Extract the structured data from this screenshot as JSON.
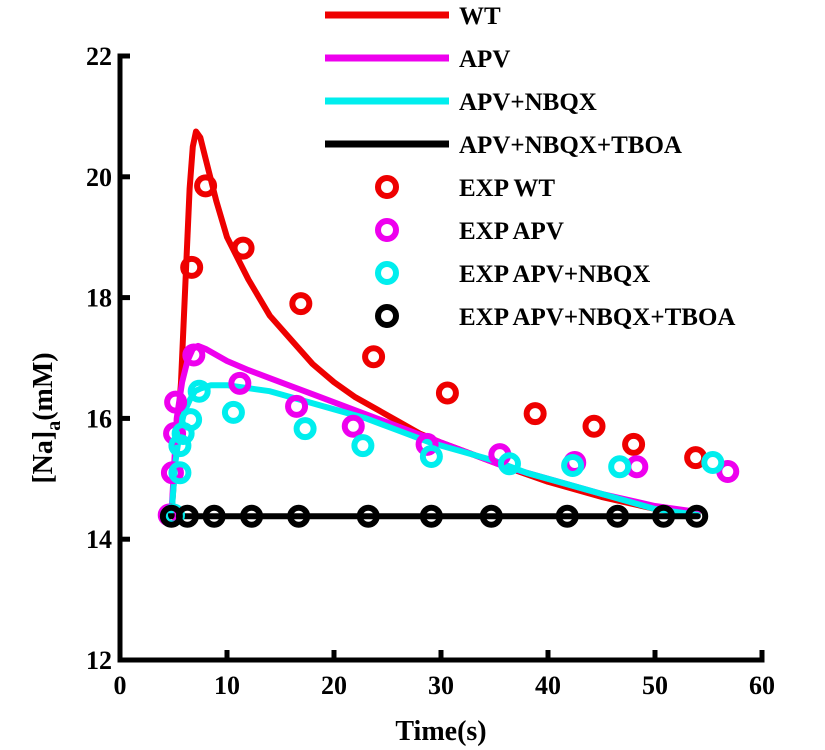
{
  "chart_data": {
    "type": "line",
    "xlabel": "Time(s)",
    "ylabel_main": "[Na]",
    "ylabel_sub": "a",
    "ylabel_unit": "(mM)",
    "xlim": [
      0,
      60
    ],
    "ylim": [
      12,
      22
    ],
    "xticks": [
      0,
      10,
      20,
      30,
      40,
      50,
      60
    ],
    "yticks": [
      12,
      14,
      16,
      18,
      20,
      22
    ],
    "grid": false,
    "legend_position": "top-right",
    "series": [
      {
        "name": "WT",
        "kind": "line",
        "color": "#ee0000",
        "x": [
          4.8,
          5.3,
          5.7,
          6.1,
          6.5,
          6.8,
          7.1,
          7.5,
          8,
          9,
          10,
          12,
          14,
          16,
          18,
          20,
          22,
          24,
          26,
          28,
          30,
          33,
          36,
          40,
          45,
          50,
          54
        ],
        "y": [
          14.4,
          15.6,
          16.6,
          18.2,
          19.8,
          20.5,
          20.75,
          20.65,
          20.3,
          19.6,
          19.0,
          18.3,
          17.7,
          17.3,
          16.9,
          16.6,
          16.35,
          16.15,
          15.95,
          15.75,
          15.6,
          15.4,
          15.2,
          14.95,
          14.7,
          14.5,
          14.42
        ]
      },
      {
        "name": "APV",
        "kind": "line",
        "color": "#ee00ee",
        "x": [
          4.8,
          5.3,
          5.8,
          6.3,
          6.8,
          7.3,
          8,
          10,
          12,
          15,
          18,
          21,
          24,
          27,
          30,
          33,
          36,
          40,
          45,
          50,
          54
        ],
        "y": [
          14.4,
          16.0,
          16.6,
          16.95,
          17.15,
          17.2,
          17.15,
          16.95,
          16.8,
          16.6,
          16.4,
          16.2,
          16.0,
          15.8,
          15.6,
          15.4,
          15.2,
          15.0,
          14.75,
          14.55,
          14.45
        ]
      },
      {
        "name": "APV+NBQX",
        "kind": "line",
        "color": "#00eeee",
        "x": [
          4.8,
          5.2,
          5.6,
          6.0,
          6.5,
          7.0,
          7.6,
          8.5,
          10,
          12,
          14,
          17,
          20,
          23,
          26,
          29,
          32,
          35,
          38,
          42,
          46,
          50,
          54
        ],
        "y": [
          14.4,
          15.3,
          15.8,
          16.1,
          16.3,
          16.45,
          16.5,
          16.55,
          16.55,
          16.5,
          16.45,
          16.3,
          16.15,
          16.0,
          15.8,
          15.6,
          15.45,
          15.3,
          15.1,
          14.9,
          14.7,
          14.5,
          14.4
        ]
      },
      {
        "name": "APV+NBQX+TBOA",
        "kind": "line",
        "color": "#000000",
        "x": [
          4,
          54
        ],
        "y": [
          14.38,
          14.38
        ]
      },
      {
        "name": "EXP WT",
        "kind": "scatter",
        "color": "#ee0000",
        "x": [
          4.8,
          6.7,
          8.0,
          11.5,
          16.9,
          23.7,
          30.6,
          38.8,
          44.3,
          48.0,
          53.8
        ],
        "y": [
          14.4,
          18.5,
          19.85,
          18.82,
          17.9,
          17.02,
          16.42,
          16.08,
          15.87,
          15.57,
          15.35
        ]
      },
      {
        "name": "EXP APV",
        "kind": "scatter",
        "color": "#ee00ee",
        "x": [
          4.6,
          4.9,
          5.1,
          5.2,
          6.9,
          11.2,
          16.5,
          21.8,
          28.7,
          35.5,
          42.5,
          48.3,
          56.8
        ],
        "y": [
          14.4,
          15.1,
          15.75,
          16.27,
          17.05,
          16.58,
          16.2,
          15.87,
          15.57,
          15.4,
          15.27,
          15.2,
          15.12
        ]
      },
      {
        "name": "EXP APV+NBQX",
        "kind": "scatter",
        "color": "#00eeee",
        "x": [
          5.0,
          5.6,
          5.6,
          5.9,
          6.6,
          7.4,
          10.6,
          17.3,
          22.7,
          29.1,
          36.4,
          42.3,
          46.7,
          55.4
        ],
        "y": [
          14.4,
          15.1,
          15.55,
          15.75,
          15.98,
          16.45,
          16.1,
          15.83,
          15.55,
          15.37,
          15.25,
          15.22,
          15.2,
          15.27
        ]
      },
      {
        "name": "EXP APV+NBQX+TBOA",
        "kind": "scatter",
        "color": "#000000",
        "x": [
          4.8,
          6.3,
          8.8,
          12.3,
          16.7,
          23.2,
          29.1,
          34.7,
          41.8,
          46.5,
          50.8,
          53.9
        ],
        "y": [
          14.38,
          14.38,
          14.38,
          14.38,
          14.38,
          14.38,
          14.38,
          14.38,
          14.38,
          14.38,
          14.38,
          14.38
        ]
      }
    ]
  }
}
